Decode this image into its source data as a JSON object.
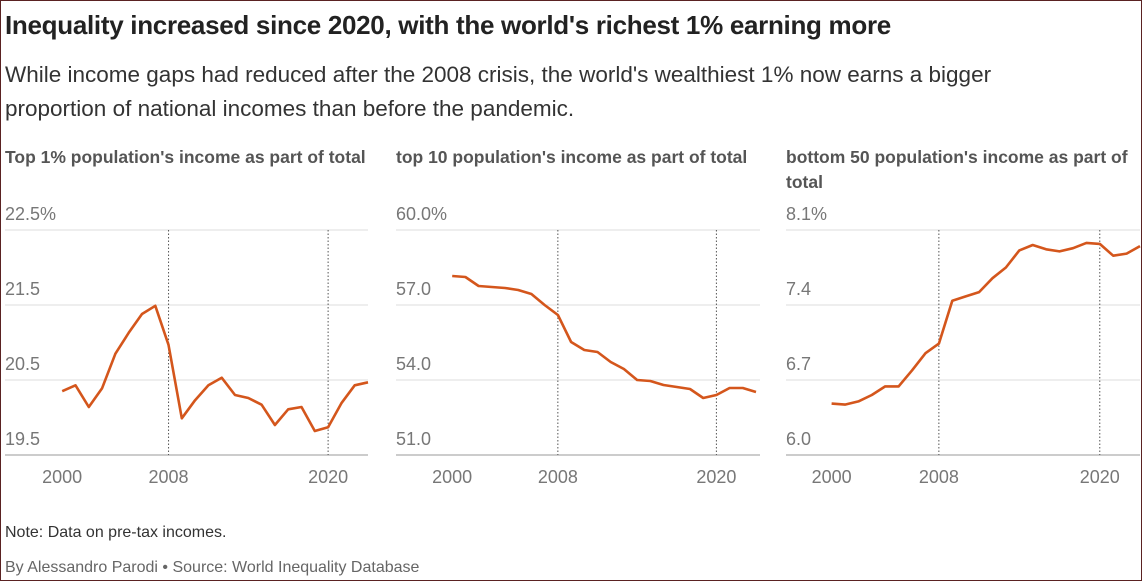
{
  "header": {
    "title": "Inequality increased since 2020, with the world's richest 1% earning more",
    "subtitle": "While income gaps had reduced after the 2008 crisis, the world's wealthiest 1% now earns a bigger proportion of national incomes than before the pandemic."
  },
  "chart_data": [
    {
      "type": "line",
      "title": "Top 1% population's income as part of total",
      "color": "#d4561c",
      "grid": true,
      "x": [
        2000,
        2001,
        2002,
        2003,
        2004,
        2005,
        2006,
        2007,
        2008,
        2009,
        2010,
        2011,
        2012,
        2013,
        2014,
        2015,
        2016,
        2017,
        2018,
        2019,
        2020,
        2021,
        2022,
        2023
      ],
      "values": [
        20.35,
        20.43,
        20.14,
        20.39,
        20.85,
        21.13,
        21.38,
        21.49,
        20.97,
        19.99,
        20.23,
        20.43,
        20.53,
        20.3,
        20.26,
        20.17,
        19.9,
        20.11,
        20.14,
        19.82,
        19.87,
        20.19,
        20.43,
        20.47
      ],
      "xlim": [
        1995.7,
        2023
      ],
      "xticks": [
        2000,
        2008,
        2020
      ],
      "vlines": [
        2008,
        2020
      ],
      "ylim": [
        19.5,
        22.5
      ],
      "yticks": [
        19.5,
        20.5,
        21.5,
        {
          "value": 22.5,
          "label": "22.5%"
        }
      ]
    },
    {
      "type": "line",
      "title": "top 10 population's income as part of total",
      "color": "#d4561c",
      "grid": true,
      "x": [
        2000,
        2001,
        2002,
        2003,
        2004,
        2005,
        2006,
        2007,
        2008,
        2009,
        2010,
        2011,
        2012,
        2013,
        2014,
        2015,
        2016,
        2017,
        2018,
        2019,
        2020,
        2021,
        2022,
        2023
      ],
      "values": [
        58.16,
        58.12,
        57.76,
        57.72,
        57.68,
        57.6,
        57.44,
        57.0,
        56.6,
        55.52,
        55.2,
        55.12,
        54.72,
        54.44,
        54.0,
        53.96,
        53.8,
        53.72,
        53.64,
        53.28,
        53.4,
        53.68,
        53.68,
        53.52
      ],
      "xlim": [
        1995.75,
        2023.3
      ],
      "xticks": [
        2000,
        2008,
        2020
      ],
      "vlines": [
        2008,
        2020
      ],
      "ylim": [
        51,
        60
      ],
      "yticks": [
        {
          "value": 51,
          "label": "51.0"
        },
        {
          "value": 54,
          "label": "54.0"
        },
        {
          "value": 57,
          "label": "57.0"
        },
        {
          "value": 60,
          "label": "60.0%"
        }
      ]
    },
    {
      "type": "line",
      "title": "bottom 50 population's income as part of total",
      "color": "#d4561c",
      "grid": true,
      "x": [
        2000,
        2001,
        2002,
        2003,
        2004,
        2005,
        2006,
        2007,
        2008,
        2009,
        2010,
        2011,
        2012,
        2013,
        2014,
        2015,
        2016,
        2017,
        2018,
        2019,
        2020,
        2021,
        2022,
        2023
      ],
      "values": [
        6.48,
        6.47,
        6.5,
        6.56,
        6.64,
        6.64,
        6.79,
        6.95,
        7.04,
        7.44,
        7.48,
        7.52,
        7.65,
        7.75,
        7.91,
        7.96,
        7.92,
        7.9,
        7.93,
        7.98,
        7.97,
        7.86,
        7.88,
        7.95
      ],
      "xlim": [
        1996.6,
        2023
      ],
      "xticks": [
        2000,
        2008,
        2020
      ],
      "vlines": [
        2008,
        2020
      ],
      "ylim": [
        6.0,
        8.1
      ],
      "yticks": [
        {
          "value": 6.0,
          "label": "6.0"
        },
        6.7,
        7.4,
        {
          "value": 8.1,
          "label": "8.1%"
        }
      ]
    }
  ],
  "footer": {
    "note": "Note: Data on pre-tax incomes.",
    "byline": "By Alessandro Parodi • Source: World Inequality Database"
  }
}
